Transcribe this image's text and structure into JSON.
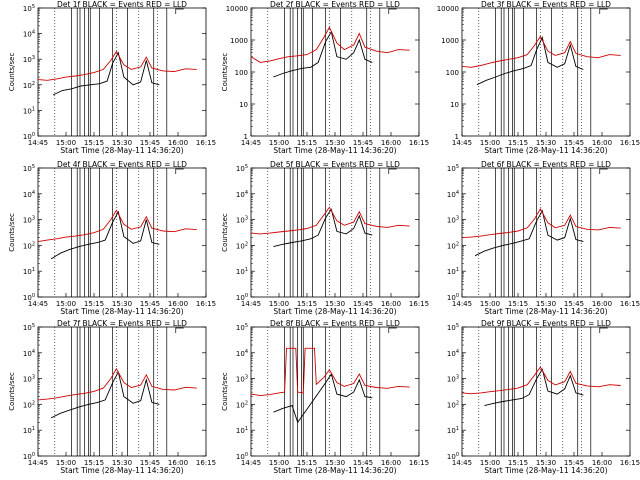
{
  "chart_data": [
    {
      "type": "line",
      "title": "Det 1f BLACK = Events RED = LLD",
      "xlabel": "Start Time (28-May-11 14:36:20)",
      "ylabel": "Counts/sec",
      "yscale": "log",
      "ylim": [
        1,
        100000
      ],
      "xlim": [
        "14:45",
        "16:15"
      ],
      "yticks": [
        "10^0",
        "10^1",
        "10^2",
        "10^3",
        "10^4",
        "10^5"
      ],
      "xticks": [
        "14:45",
        "15:00",
        "15:15",
        "15:30",
        "15:45",
        "16:00",
        "16:15"
      ],
      "series": [
        {
          "color": "#000000",
          "x": [
            "14:53",
            "14:58",
            "15:03",
            "15:08",
            "15:13",
            "15:18",
            "15:22",
            "15:25",
            "15:28",
            "15:31",
            "15:36",
            "15:40",
            "15:43",
            "15:46",
            "15:50"
          ],
          "values": [
            40,
            60,
            70,
            90,
            100,
            110,
            140,
            700,
            1800,
            200,
            100,
            130,
            900,
            120,
            100
          ]
        },
        {
          "color": "#d00000",
          "x": [
            "14:45",
            "14:50",
            "14:55",
            "15:00",
            "15:05",
            "15:10",
            "15:15",
            "15:20",
            "15:24",
            "15:27",
            "15:31",
            "15:35",
            "15:40",
            "15:43",
            "15:46",
            "15:52",
            "15:58",
            "16:04",
            "16:10"
          ],
          "values": [
            160,
            150,
            170,
            200,
            220,
            250,
            300,
            400,
            900,
            2000,
            600,
            400,
            500,
            1200,
            450,
            350,
            330,
            420,
            400
          ]
        }
      ]
    },
    {
      "type": "line",
      "title": "Det 2f BLACK = Events RED = LLD",
      "xlabel": "Start Time (28-May-11 14:36:20)",
      "ylabel": "Counts/sec",
      "yscale": "log",
      "ylim": [
        1,
        10000
      ],
      "xlim": [
        "14:45",
        "16:15"
      ],
      "yticks": [
        "1",
        "10",
        "100",
        "1000",
        "10000"
      ],
      "xticks": [
        "14:45",
        "15:00",
        "15:15",
        "15:30",
        "15:45",
        "16:00",
        "16:15"
      ],
      "series": [
        {
          "color": "#000000",
          "x": [
            "14:57",
            "15:02",
            "15:07",
            "15:12",
            "15:17",
            "15:21",
            "15:25",
            "15:28",
            "15:31",
            "15:36",
            "15:40",
            "15:43",
            "15:46",
            "15:50"
          ],
          "values": [
            70,
            90,
            110,
            130,
            140,
            200,
            900,
            1800,
            300,
            250,
            400,
            1000,
            250,
            200
          ]
        },
        {
          "color": "#d00000",
          "x": [
            "14:45",
            "14:50",
            "14:55",
            "15:00",
            "15:05",
            "15:10",
            "15:15",
            "15:20",
            "15:24",
            "15:27",
            "15:31",
            "15:35",
            "15:40",
            "15:43",
            "15:46",
            "15:52",
            "15:58",
            "16:04",
            "16:10"
          ],
          "values": [
            300,
            200,
            220,
            260,
            300,
            320,
            350,
            500,
            1200,
            2500,
            800,
            500,
            700,
            1600,
            600,
            450,
            400,
            500,
            480
          ]
        }
      ]
    },
    {
      "type": "line",
      "title": "Det 3f BLACK = Events RED = LLD",
      "xlabel": "Start Time (28-May-11 14:36:20)",
      "ylabel": "",
      "yscale": "log",
      "ylim": [
        1,
        10000
      ],
      "xlim": [
        "14:45",
        "16:15"
      ],
      "yticks": [
        "1",
        "10",
        "100",
        "1000",
        "10000"
      ],
      "xticks": [
        "14:45",
        "15:00",
        "15:15",
        "15:30",
        "15:45",
        "16:00",
        "16:15"
      ],
      "series": [
        {
          "color": "#000000",
          "x": [
            "14:53",
            "14:58",
            "15:03",
            "15:08",
            "15:13",
            "15:18",
            "15:22",
            "15:25",
            "15:28",
            "15:31",
            "15:36",
            "15:40",
            "15:43",
            "15:46",
            "15:50"
          ],
          "values": [
            40,
            55,
            70,
            90,
            110,
            130,
            160,
            500,
            1200,
            200,
            140,
            180,
            700,
            150,
            120
          ]
        },
        {
          "color": "#d00000",
          "x": [
            "14:45",
            "14:50",
            "14:55",
            "15:00",
            "15:05",
            "15:10",
            "15:15",
            "15:20",
            "15:24",
            "15:27",
            "15:31",
            "15:35",
            "15:40",
            "15:43",
            "15:46",
            "15:52",
            "15:58",
            "16:04",
            "16:10"
          ],
          "values": [
            150,
            140,
            160,
            190,
            220,
            250,
            280,
            350,
            700,
            1300,
            450,
            330,
            400,
            900,
            380,
            300,
            280,
            350,
            330
          ]
        }
      ]
    },
    {
      "type": "line",
      "title": "Det 4f BLACK = Events RED = LLD",
      "xlabel": "Start Time (28-May-11 14:36:20)",
      "ylabel": "Counts/sec",
      "yscale": "log",
      "ylim": [
        1,
        100000
      ],
      "xlim": [
        "14:45",
        "16:15"
      ],
      "yticks": [
        "10^0",
        "10^1",
        "10^2",
        "10^3",
        "10^4",
        "10^5"
      ],
      "xticks": [
        "14:45",
        "15:00",
        "15:15",
        "15:30",
        "15:45",
        "16:00",
        "16:15"
      ],
      "series": [
        {
          "color": "#000000",
          "x": [
            "14:52",
            "14:57",
            "15:02",
            "15:07",
            "15:12",
            "15:17",
            "15:21",
            "15:25",
            "15:28",
            "15:31",
            "15:36",
            "15:40",
            "15:43",
            "15:46",
            "15:50"
          ],
          "values": [
            30,
            50,
            70,
            90,
            110,
            130,
            160,
            800,
            2000,
            220,
            120,
            150,
            1000,
            130,
            110
          ]
        },
        {
          "color": "#d00000",
          "x": [
            "14:45",
            "14:50",
            "14:55",
            "15:00",
            "15:05",
            "15:10",
            "15:15",
            "15:20",
            "15:24",
            "15:27",
            "15:31",
            "15:35",
            "15:40",
            "15:43",
            "15:46",
            "15:52",
            "15:58",
            "16:04",
            "16:10"
          ],
          "values": [
            140,
            160,
            180,
            210,
            230,
            260,
            310,
            420,
            1000,
            2300,
            650,
            420,
            520,
            1300,
            470,
            360,
            340,
            440,
            410
          ]
        }
      ]
    },
    {
      "type": "line",
      "title": "Det 5f BLACK = Events RED = LLD",
      "xlabel": "Start Time (28-May-11 14:36:20)",
      "ylabel": "Counts/sec",
      "yscale": "log",
      "ylim": [
        1,
        100000
      ],
      "xlim": [
        "14:45",
        "16:15"
      ],
      "yticks": [
        "10^0",
        "10^1",
        "10^2",
        "10^3",
        "10^4",
        "10^5"
      ],
      "xticks": [
        "14:45",
        "15:00",
        "15:15",
        "15:30",
        "15:45",
        "16:00",
        "16:15"
      ],
      "series": [
        {
          "color": "#000000",
          "x": [
            "14:57",
            "15:02",
            "15:07",
            "15:12",
            "15:17",
            "15:21",
            "15:25",
            "15:28",
            "15:31",
            "15:36",
            "15:40",
            "15:43",
            "15:46",
            "15:50"
          ],
          "values": [
            90,
            110,
            130,
            150,
            180,
            250,
            1200,
            2500,
            350,
            280,
            450,
            1400,
            300,
            250
          ]
        },
        {
          "color": "#d00000",
          "x": [
            "14:45",
            "14:50",
            "14:55",
            "15:00",
            "15:05",
            "15:10",
            "15:15",
            "15:20",
            "15:24",
            "15:27",
            "15:31",
            "15:35",
            "15:40",
            "15:43",
            "15:46",
            "15:52",
            "15:58",
            "16:04",
            "16:10"
          ],
          "values": [
            300,
            280,
            300,
            330,
            360,
            400,
            450,
            600,
            1500,
            3000,
            900,
            600,
            800,
            2000,
            700,
            550,
            500,
            600,
            560
          ]
        }
      ]
    },
    {
      "type": "line",
      "title": "Det 6f BLACK = Events RED = LLD",
      "xlabel": "Start Time (28-May-11 14:36:20)",
      "ylabel": "",
      "yscale": "log",
      "ylim": [
        1,
        100000
      ],
      "xlim": [
        "14:45",
        "16:15"
      ],
      "yticks": [
        "10^0",
        "10^1",
        "10^2",
        "10^3",
        "10^4",
        "10^5"
      ],
      "xticks": [
        "14:45",
        "15:00",
        "15:15",
        "15:30",
        "15:45",
        "16:00",
        "16:15"
      ],
      "series": [
        {
          "color": "#000000",
          "x": [
            "14:52",
            "14:57",
            "15:02",
            "15:07",
            "15:12",
            "15:17",
            "15:21",
            "15:25",
            "15:28",
            "15:31",
            "15:36",
            "15:40",
            "15:43",
            "15:46",
            "15:50"
          ],
          "values": [
            40,
            60,
            80,
            100,
            120,
            150,
            180,
            900,
            2200,
            250,
            160,
            200,
            1100,
            170,
            140
          ]
        },
        {
          "color": "#d00000",
          "x": [
            "14:45",
            "14:50",
            "14:55",
            "15:00",
            "15:05",
            "15:10",
            "15:15",
            "15:20",
            "15:24",
            "15:27",
            "15:31",
            "15:35",
            "15:40",
            "15:43",
            "15:46",
            "15:52",
            "15:58",
            "16:04",
            "16:10"
          ],
          "values": [
            200,
            210,
            230,
            260,
            290,
            320,
            360,
            480,
            1100,
            2600,
            750,
            480,
            600,
            1500,
            540,
            420,
            400,
            500,
            470
          ]
        }
      ]
    },
    {
      "type": "line",
      "title": "Det 7f BLACK = Events RED = LLD",
      "xlabel": "Start Time (28-May-11 14:36:20)",
      "ylabel": "Counts/sec",
      "yscale": "log",
      "ylim": [
        1,
        100000
      ],
      "xlim": [
        "14:45",
        "16:15"
      ],
      "yticks": [
        "10^0",
        "10^1",
        "10^2",
        "10^3",
        "10^4",
        "10^5"
      ],
      "xticks": [
        "14:45",
        "15:00",
        "15:15",
        "15:30",
        "15:45",
        "16:00",
        "16:15"
      ],
      "series": [
        {
          "color": "#000000",
          "x": [
            "14:52",
            "14:57",
            "15:02",
            "15:07",
            "15:12",
            "15:17",
            "15:21",
            "15:25",
            "15:28",
            "15:31",
            "15:36",
            "15:40",
            "15:43",
            "15:46",
            "15:50"
          ],
          "values": [
            30,
            45,
            60,
            80,
            100,
            120,
            150,
            700,
            1800,
            200,
            110,
            140,
            900,
            120,
            100
          ]
        },
        {
          "color": "#d00000",
          "x": [
            "14:45",
            "14:50",
            "14:55",
            "15:00",
            "15:05",
            "15:10",
            "15:15",
            "15:20",
            "15:24",
            "15:27",
            "15:31",
            "15:35",
            "15:40",
            "15:43",
            "15:46",
            "15:52",
            "15:58",
            "16:04",
            "16:10"
          ],
          "values": [
            150,
            160,
            180,
            210,
            240,
            270,
            320,
            430,
            1000,
            2400,
            700,
            450,
            560,
            1400,
            500,
            380,
            360,
            460,
            430
          ]
        }
      ]
    },
    {
      "type": "line",
      "title": "Det 8f BLACK = Events RED = LLD",
      "xlabel": "Start Time (28-May-11 14:36:20)",
      "ylabel": "Counts/sec",
      "yscale": "log",
      "ylim": [
        1,
        100000
      ],
      "xlim": [
        "14:45",
        "16:15"
      ],
      "yticks": [
        "10^0",
        "10^1",
        "10^2",
        "10^3",
        "10^4",
        "10^5"
      ],
      "xticks": [
        "14:45",
        "15:00",
        "15:15",
        "15:30",
        "15:45",
        "16:00",
        "16:15"
      ],
      "series": [
        {
          "color": "#000000",
          "x": [
            "14:57",
            "15:02",
            "15:07",
            "15:10",
            "15:25",
            "15:28",
            "15:31",
            "15:36",
            "15:40",
            "15:43",
            "15:46",
            "15:50"
          ],
          "values": [
            50,
            70,
            90,
            20,
            700,
            1500,
            250,
            200,
            300,
            900,
            200,
            180
          ]
        },
        {
          "color": "#d00000",
          "x": [
            "14:45",
            "14:50",
            "14:55",
            "15:00",
            "15:03",
            "15:04",
            "15:09",
            "15:10",
            "15:13",
            "15:14",
            "15:19",
            "15:20",
            "15:24",
            "15:27",
            "15:31",
            "15:35",
            "15:40",
            "15:43",
            "15:46",
            "15:52",
            "15:58",
            "16:04",
            "16:10"
          ],
          "values": [
            250,
            220,
            240,
            280,
            300,
            15000,
            15000,
            300,
            280,
            15000,
            15000,
            600,
            1100,
            2200,
            700,
            500,
            650,
            1500,
            550,
            450,
            420,
            500,
            470
          ]
        }
      ]
    },
    {
      "type": "line",
      "title": "Det 9f BLACK = Events RED = LLD",
      "xlabel": "Start Time (28-May-11 14:36:20)",
      "ylabel": "",
      "yscale": "log",
      "ylim": [
        1,
        100000
      ],
      "xlim": [
        "14:45",
        "16:15"
      ],
      "yticks": [
        "10^0",
        "10^1",
        "10^2",
        "10^3",
        "10^4",
        "10^5"
      ],
      "xticks": [
        "14:45",
        "15:00",
        "15:15",
        "15:30",
        "15:45",
        "16:00",
        "16:15"
      ],
      "series": [
        {
          "color": "#000000",
          "x": [
            "14:57",
            "15:02",
            "15:07",
            "15:12",
            "15:17",
            "15:21",
            "15:25",
            "15:28",
            "15:31",
            "15:36",
            "15:40",
            "15:43",
            "15:46",
            "15:50"
          ],
          "values": [
            90,
            110,
            130,
            150,
            170,
            240,
            1000,
            2300,
            330,
            250,
            400,
            1300,
            280,
            230
          ]
        },
        {
          "color": "#d00000",
          "x": [
            "14:45",
            "14:50",
            "14:55",
            "15:00",
            "15:05",
            "15:10",
            "15:15",
            "15:20",
            "15:24",
            "15:27",
            "15:31",
            "15:35",
            "15:40",
            "15:43",
            "15:46",
            "15:52",
            "15:58",
            "16:04",
            "16:10"
          ],
          "values": [
            280,
            260,
            280,
            310,
            340,
            380,
            430,
            580,
            1400,
            2800,
            850,
            570,
            760,
            1900,
            660,
            520,
            480,
            580,
            540
          ]
        }
      ]
    }
  ]
}
